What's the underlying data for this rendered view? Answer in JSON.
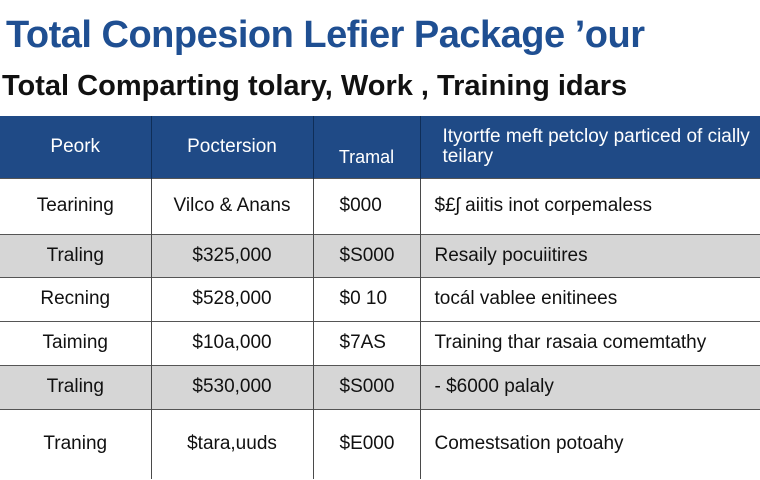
{
  "page": {
    "title": "Total Conpesion Lefier Package ’our",
    "subtitle": "Total  Comparting tolary, Work , Traininɡ  idars"
  },
  "table": {
    "headers": [
      "Peork",
      "Poctersion",
      "Tramal",
      "Ityortfe meft petcloy particed of cially teilary"
    ],
    "rows": [
      {
        "col1": "Tearining",
        "col2": "Vilco & Anans",
        "col3": "$000",
        "col4": "$£ʃ aiitis  inot corpemaless"
      },
      {
        "col1": "Traling",
        "col2": "$325,000",
        "col3": "$S000",
        "col4": "Resaily pocuiitires"
      },
      {
        "col1": "Recning",
        "col2": "$528,000",
        "col3": "$0 10",
        "col4": "tocál vablee enitinees"
      },
      {
        "col1": "Taiming",
        "col2": "$10a,000",
        "col3": "$7AS",
        "col4": "Training thar rasaia comemtathy"
      },
      {
        "col1": "Traling",
        "col2": "$530,000",
        "col3": "$S000",
        "col4": "- $6000 palaly"
      },
      {
        "col1": "Traning",
        "col2": "$tara,uuds",
        "col3": "$E000",
        "col4": "Comestsation potoahy"
      }
    ]
  },
  "colors": {
    "title": "#1f4f92",
    "header_bg": "#1f4a86",
    "band_gray": "#d6d6d6"
  }
}
